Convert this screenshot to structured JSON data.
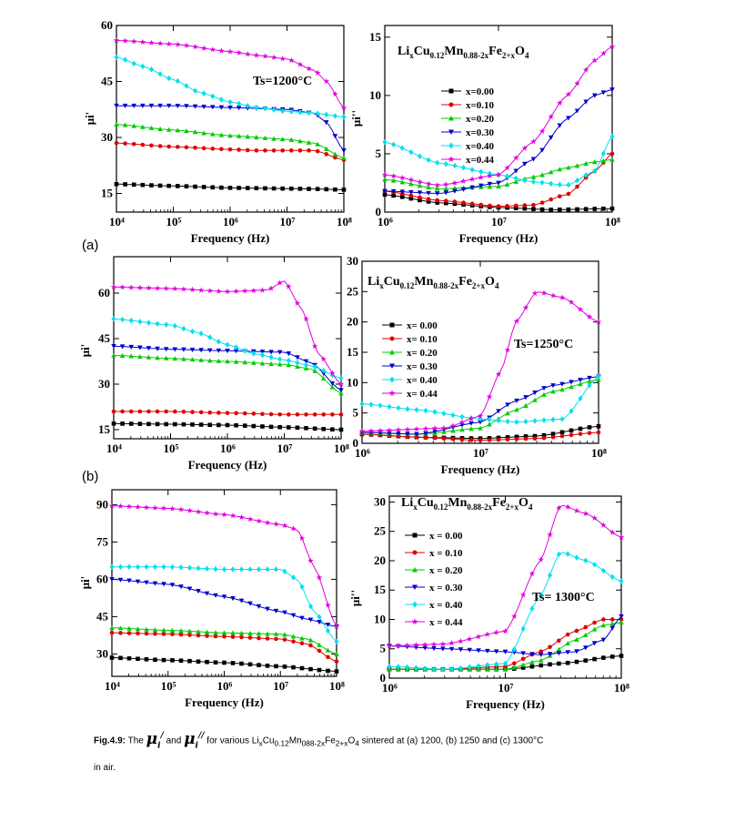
{
  "panel_labels": [
    "(a)",
    "(b)"
  ],
  "caption": {
    "label": "Fig.4.9:",
    "text_1": "The",
    "text_2": "and",
    "text_3": "for various Li",
    "text_4": "sintered at (a) 1200, (b) 1250 and (c) 1300°C",
    "text_5": "in air."
  },
  "series_colors": {
    "x=0.00": "#000000",
    "x=0.10": "#e00000",
    "x=0.20": "#00cc00",
    "x=0.30": "#0000cc",
    "x=0.40": "#00e0ee",
    "x=0.44": "#e000e0"
  },
  "chart_data": [
    {
      "id": "a-real",
      "type": "line",
      "ylabel": "μi'",
      "xlabel": "Frequency (Hz)",
      "xscale": "log",
      "xlim": [
        10000,
        100000000
      ],
      "ylim": [
        10,
        60
      ],
      "yticks": [
        15,
        30,
        45,
        60
      ],
      "xticks": [
        "10⁴",
        "10⁵",
        "10⁶",
        "10⁷",
        "10⁸"
      ],
      "annotation": "Ts=1200°C",
      "series": [
        {
          "name": "x=0.00",
          "x": [
            10000.0,
            100000.0,
            1000000.0,
            10000000.0,
            30000000.0,
            100000000.0
          ],
          "values": [
            17.5,
            17,
            16.5,
            16.3,
            16.2,
            16
          ]
        },
        {
          "name": "x=0.10",
          "x": [
            10000.0,
            100000.0,
            1000000.0,
            3000000.0,
            10000000.0,
            30000000.0,
            100000000.0
          ],
          "values": [
            28.5,
            27.5,
            26.8,
            26.5,
            26.5,
            26.5,
            24
          ]
        },
        {
          "name": "x=0.20",
          "x": [
            10000.0,
            100000.0,
            1000000.0,
            10000000.0,
            30000000.0,
            100000000.0
          ],
          "values": [
            33.5,
            32,
            30.5,
            29.5,
            28.5,
            24.5
          ]
        },
        {
          "name": "x=0.30",
          "x": [
            10000.0,
            100000.0,
            1000000.0,
            10000000.0,
            30000000.0,
            50000000.0,
            100000000.0
          ],
          "values": [
            38.5,
            38.5,
            38,
            37.5,
            36.5,
            34,
            26.5
          ]
        },
        {
          "name": "x=0.40",
          "x": [
            10000.0,
            30000.0,
            100000.0,
            300000.0,
            1000000.0,
            3000000.0,
            10000000.0,
            30000000.0,
            100000000.0
          ],
          "values": [
            51.5,
            49,
            45.5,
            42,
            39.5,
            38,
            37,
            36.5,
            35.5
          ]
        },
        {
          "name": "x=0.44",
          "x": [
            10000.0,
            100000.0,
            1000000.0,
            3000000.0,
            10000000.0,
            30000000.0,
            50000000.0,
            100000000.0
          ],
          "values": [
            56,
            55,
            53,
            52,
            51,
            48,
            45,
            38
          ]
        }
      ]
    },
    {
      "id": "a-imag",
      "type": "line",
      "ylabel": "μi''",
      "xlabel": "Frequency (Hz)",
      "xscale": "log",
      "xlim": [
        1000000,
        100000000
      ],
      "ylim": [
        0,
        16
      ],
      "yticks": [
        0,
        5,
        10,
        15
      ],
      "xticks": [
        "10⁶",
        "10⁷",
        "10⁸"
      ],
      "title": "LixCu0.12Mn0.88-2xFe2+xO4",
      "series": [
        {
          "name": "x=0.00",
          "x": [
            1000000.0,
            3000000.0,
            10000000.0,
            30000000.0,
            100000000.0
          ],
          "values": [
            1.5,
            0.8,
            0.4,
            0.2,
            0.3
          ]
        },
        {
          "name": "x=0.10",
          "x": [
            1000000.0,
            3000000.0,
            10000000.0,
            20000000.0,
            40000000.0,
            70000000.0,
            100000000.0
          ],
          "values": [
            1.8,
            1.0,
            0.5,
            0.6,
            1.5,
            3.5,
            5
          ]
        },
        {
          "name": "x=0.20",
          "x": [
            1000000.0,
            3000000.0,
            10000000.0,
            20000000.0,
            40000000.0,
            70000000.0,
            100000000.0
          ],
          "values": [
            2.8,
            2.0,
            2.2,
            3.0,
            3.8,
            4.3,
            4.5
          ]
        },
        {
          "name": "x=0.30",
          "x": [
            1000000.0,
            3000000.0,
            10000000.0,
            20000000.0,
            40000000.0,
            70000000.0,
            100000000.0
          ],
          "values": [
            1.8,
            1.6,
            2.5,
            4.5,
            8,
            10,
            10.5
          ]
        },
        {
          "name": "x=0.40",
          "x": [
            1000000.0,
            3000000.0,
            10000000.0,
            20000000.0,
            40000000.0,
            70000000.0,
            100000000.0
          ],
          "values": [
            6,
            4.2,
            3.2,
            2.6,
            2.3,
            3.5,
            6.5
          ]
        },
        {
          "name": "x=0.44",
          "x": [
            1000000.0,
            3000000.0,
            10000000.0,
            20000000.0,
            40000000.0,
            70000000.0,
            100000000.0
          ],
          "values": [
            3.2,
            2.3,
            3.2,
            6,
            10,
            13,
            14.2
          ]
        }
      ]
    },
    {
      "id": "b-real",
      "type": "line",
      "ylabel": "μi'",
      "xlabel": "Frequency (Hz)",
      "xscale": "log",
      "xlim": [
        10000,
        100000000
      ],
      "ylim": [
        12,
        72
      ],
      "yticks": [
        15,
        30,
        45,
        60
      ],
      "xticks": [
        "10⁴",
        "10⁵",
        "10⁶",
        "10⁷",
        "10⁸"
      ],
      "series": [
        {
          "name": "x=0.00",
          "x": [
            10000.0,
            100000.0,
            1000000.0,
            10000000.0,
            100000000.0
          ],
          "values": [
            17,
            16.8,
            16.5,
            15.8,
            15
          ]
        },
        {
          "name": "x=0.10",
          "x": [
            10000.0,
            100000.0,
            1000000.0,
            10000000.0,
            100000000.0
          ],
          "values": [
            21,
            21,
            20.5,
            20,
            20
          ]
        },
        {
          "name": "x=0.20",
          "x": [
            10000.0,
            100000.0,
            1000000.0,
            10000000.0,
            30000000.0,
            100000000.0
          ],
          "values": [
            39.5,
            38.5,
            37.5,
            36.5,
            35,
            27
          ]
        },
        {
          "name": "x=0.30",
          "x": [
            10000.0,
            100000.0,
            1000000.0,
            10000000.0,
            30000000.0,
            100000000.0
          ],
          "values": [
            42.5,
            41.5,
            41,
            40.5,
            37,
            28
          ]
        },
        {
          "name": "x=0.40",
          "x": [
            10000.0,
            100000.0,
            300000.0,
            1000000.0,
            3000000.0,
            10000000.0,
            30000000.0,
            100000000.0
          ],
          "values": [
            51.5,
            49.5,
            47,
            43,
            40,
            38,
            36,
            32
          ]
        },
        {
          "name": "x=0.44",
          "x": [
            10000.0,
            100000.0,
            1000000.0,
            5000000.0,
            10000000.0,
            20000000.0,
            40000000.0,
            100000000.0
          ],
          "values": [
            62,
            61.5,
            60.5,
            61,
            64,
            55,
            40,
            30
          ]
        }
      ]
    },
    {
      "id": "b-imag",
      "type": "line",
      "ylabel": "",
      "xlabel": "Frequency (Hz)",
      "xscale": "log",
      "xlim": [
        1000000,
        100000000
      ],
      "ylim": [
        0,
        30
      ],
      "yticks": [
        0,
        5,
        10,
        15,
        20,
        25,
        30
      ],
      "xticks": [
        "10⁶",
        "10⁷",
        "10⁸"
      ],
      "title": "LixCu0.12Mn0.88-2xFe2+xO4",
      "annotation": "Ts=1250°C",
      "series": [
        {
          "name": "x= 0.00",
          "x": [
            1000000.0,
            3000000.0,
            10000000.0,
            30000000.0,
            100000000.0
          ],
          "values": [
            1.5,
            1.0,
            0.8,
            1.2,
            2.8
          ]
        },
        {
          "name": "x= 0.10",
          "x": [
            1000000.0,
            3000000.0,
            10000000.0,
            30000000.0,
            100000000.0
          ],
          "values": [
            1.5,
            1.0,
            0.5,
            0.8,
            1.8
          ]
        },
        {
          "name": "x= 0.20",
          "x": [
            1000000.0,
            3000000.0,
            10000000.0,
            20000000.0,
            40000000.0,
            100000000.0
          ],
          "values": [
            1.8,
            1.5,
            2.5,
            5.5,
            8.5,
            10.5
          ]
        },
        {
          "name": "x= 0.30",
          "x": [
            1000000.0,
            3000000.0,
            10000000.0,
            20000000.0,
            40000000.0,
            100000000.0
          ],
          "values": [
            1.8,
            1.5,
            3.5,
            7,
            9.5,
            11
          ]
        },
        {
          "name": "x= 0.40",
          "x": [
            1000000.0,
            3000000.0,
            10000000.0,
            20000000.0,
            50000000.0,
            100000000.0
          ],
          "values": [
            6.5,
            5.5,
            4,
            3.5,
            4,
            11
          ]
        },
        {
          "name": "x= 0.44",
          "x": [
            1000000.0,
            5000000.0,
            10000000.0,
            15000000.0,
            20000000.0,
            30000000.0,
            50000000.0,
            100000000.0
          ],
          "values": [
            2,
            2.5,
            4.5,
            12,
            20,
            25,
            24,
            20
          ]
        }
      ]
    },
    {
      "id": "c-real",
      "type": "line",
      "ylabel": "μi'",
      "xlabel": "Frequency (Hz)",
      "xscale": "log",
      "xlim": [
        10000,
        100000000
      ],
      "ylim": [
        21,
        96
      ],
      "yticks": [
        30,
        45,
        60,
        75,
        90
      ],
      "xticks": [
        "10⁴",
        "10⁵",
        "10⁶",
        "10⁷",
        "10⁸"
      ],
      "series": [
        {
          "name": "x=0.00",
          "x": [
            10000.0,
            100000.0,
            1000000.0,
            10000000.0,
            100000000.0
          ],
          "values": [
            28.5,
            27.5,
            26.5,
            25,
            23
          ]
        },
        {
          "name": "x=0.10",
          "x": [
            10000.0,
            100000.0,
            1000000.0,
            10000000.0,
            30000000.0,
            100000000.0
          ],
          "values": [
            38.5,
            38,
            37,
            36,
            34,
            27
          ]
        },
        {
          "name": "x=0.20",
          "x": [
            10000.0,
            100000.0,
            1000000.0,
            10000000.0,
            30000000.0,
            100000000.0
          ],
          "values": [
            40.5,
            39.5,
            38.5,
            38,
            36,
            30
          ]
        },
        {
          "name": "x=0.30",
          "x": [
            10000.0,
            100000.0,
            1000000.0,
            10000000.0,
            30000000.0,
            100000000.0
          ],
          "values": [
            60,
            58,
            53,
            47,
            44,
            41
          ]
        },
        {
          "name": "x=0.40",
          "x": [
            10000.0,
            100000.0,
            1000000.0,
            10000000.0,
            20000000.0,
            40000000.0,
            100000000.0
          ],
          "values": [
            65,
            65,
            64,
            64,
            60,
            47,
            35
          ]
        },
        {
          "name": "x=0.44",
          "x": [
            10000.0,
            100000.0,
            1000000.0,
            10000000.0,
            20000000.0,
            40000000.0,
            100000000.0
          ],
          "values": [
            89.5,
            88.5,
            86,
            82,
            80,
            65,
            41
          ]
        }
      ]
    },
    {
      "id": "c-imag",
      "type": "line",
      "ylabel": "μi''",
      "xlabel": "Frequency (Hz)",
      "xscale": "log",
      "xlim": [
        1000000,
        100000000
      ],
      "ylim": [
        0,
        31
      ],
      "yticks": [
        0,
        5,
        10,
        15,
        20,
        25,
        30
      ],
      "xticks": [
        "10⁶",
        "10⁷",
        "10⁸"
      ],
      "title": "LixCu0.12Mn0.88-2xFe2+xO4",
      "annotation": "Ts= 1300°C",
      "series": [
        {
          "name": "x = 0.00",
          "x": [
            1000000.0,
            3000000.0,
            10000000.0,
            30000000.0,
            100000000.0
          ],
          "values": [
            1.5,
            1.5,
            1.5,
            2.5,
            3.8
          ]
        },
        {
          "name": "x = 0.10",
          "x": [
            1000000.0,
            3000000.0,
            10000000.0,
            20000000.0,
            40000000.0,
            70000000.0,
            100000000.0
          ],
          "values": [
            1.5,
            1.5,
            2,
            4.5,
            8,
            10,
            10
          ]
        },
        {
          "name": "x = 0.20",
          "x": [
            1000000.0,
            3000000.0,
            10000000.0,
            20000000.0,
            40000000.0,
            70000000.0,
            100000000.0
          ],
          "values": [
            1.5,
            1.5,
            1.5,
            3,
            6.5,
            9,
            9.5
          ]
        },
        {
          "name": "x = 0.30",
          "x": [
            1000000.0,
            3000000.0,
            10000000.0,
            20000000.0,
            40000000.0,
            70000000.0,
            100000000.0
          ],
          "values": [
            5.5,
            5,
            4.5,
            4,
            4.5,
            6.5,
            10.5
          ]
        },
        {
          "name": "x = 0.40",
          "x": [
            1000000.0,
            3000000.0,
            10000000.0,
            20000000.0,
            30000000.0,
            50000000.0,
            100000000.0
          ],
          "values": [
            2,
            1.5,
            2.5,
            14,
            21.5,
            20,
            16.5
          ]
        },
        {
          "name": "x = 0.44",
          "x": [
            1000000.0,
            3000000.0,
            10000000.0,
            20000000.0,
            30000000.0,
            50000000.0,
            100000000.0
          ],
          "values": [
            5.5,
            5.8,
            8,
            20,
            29.5,
            28,
            24
          ]
        }
      ]
    }
  ]
}
